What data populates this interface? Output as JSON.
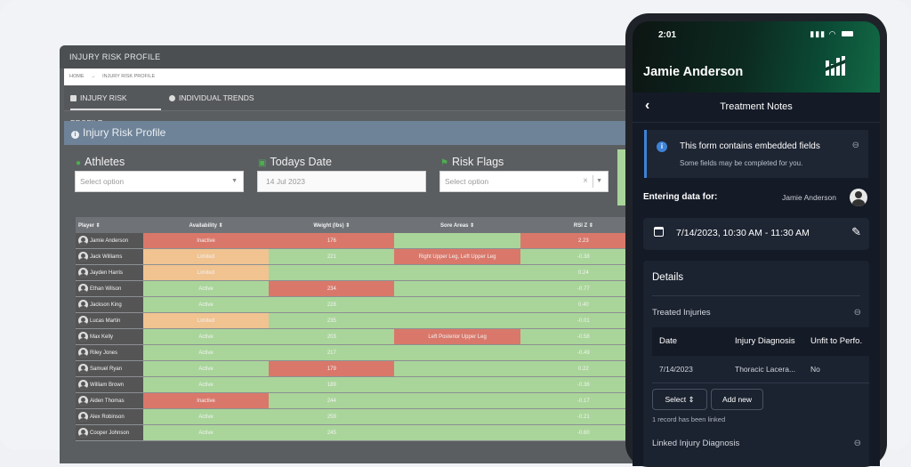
{
  "desktop": {
    "window_title": "INJURY RISK PROFILE",
    "breadcrumb": [
      "HOME",
      "→",
      "INJURY RISK PROFILE"
    ],
    "tabs": [
      {
        "label": "INJURY RISK PROFILE",
        "icon": "profile-icon",
        "active": true
      },
      {
        "label": "INDIVIDUAL TRENDS",
        "icon": "trends-icon",
        "active": false
      }
    ],
    "panel_title": "Injury Risk Profile",
    "filters": {
      "athletes": {
        "label": "Athletes",
        "placeholder": "Select option"
      },
      "date": {
        "label": "Todays Date",
        "value": "14 Jul 2023"
      },
      "risk_flags": {
        "label": "Risk Flags",
        "placeholder": "Select option"
      }
    },
    "table": {
      "headers": [
        "Player ⇕",
        "Availability ⇕",
        "Weight (lbs) ⇕",
        "Sore Areas ⇕",
        "RSI Z ⇕"
      ],
      "rows": [
        {
          "player": "Jamie Anderson",
          "availability": "Inactive",
          "weight": "176",
          "sore": "",
          "rsi": "2.23",
          "colors": [
            "red",
            "red",
            "grn",
            "red"
          ]
        },
        {
          "player": "Jack Williams",
          "availability": "Limited",
          "weight": "221",
          "sore": "Right Upper Leg, Left Upper Leg",
          "rsi": "-0.38",
          "colors": [
            "org",
            "grn",
            "red",
            "grn"
          ]
        },
        {
          "player": "Jayden Harris",
          "availability": "Limited",
          "weight": "",
          "sore": "",
          "rsi": "0.24",
          "colors": [
            "org",
            "grn",
            "grn",
            "grn"
          ]
        },
        {
          "player": "Ethan Wilson",
          "availability": "Active",
          "weight": "234",
          "sore": "",
          "rsi": "-0.77",
          "colors": [
            "grn",
            "red",
            "grn",
            "grn"
          ]
        },
        {
          "player": "Jackson King",
          "availability": "Active",
          "weight": "228",
          "sore": "",
          "rsi": "0.40",
          "colors": [
            "grn",
            "grn",
            "grn",
            "grn"
          ]
        },
        {
          "player": "Lucas Martin",
          "availability": "Limited",
          "weight": "235",
          "sore": "",
          "rsi": "-0.01",
          "colors": [
            "org",
            "grn",
            "grn",
            "grn"
          ]
        },
        {
          "player": "Max Kelly",
          "availability": "Active",
          "weight": "203",
          "sore": "Left Posterior Upper Leg",
          "rsi": "-0.58",
          "colors": [
            "grn",
            "grn",
            "red",
            "grn"
          ]
        },
        {
          "player": "Riley Jones",
          "availability": "Active",
          "weight": "217",
          "sore": "",
          "rsi": "-0.49",
          "colors": [
            "grn",
            "grn",
            "grn",
            "grn"
          ]
        },
        {
          "player": "Samuel Ryan",
          "availability": "Active",
          "weight": "179",
          "sore": "",
          "rsi": "0.22",
          "colors": [
            "grn",
            "red",
            "grn",
            "grn"
          ]
        },
        {
          "player": "William Brown",
          "availability": "Active",
          "weight": "189",
          "sore": "",
          "rsi": "-0.36",
          "colors": [
            "grn",
            "grn",
            "grn",
            "grn"
          ]
        },
        {
          "player": "Aiden Thomas",
          "availability": "Inactive",
          "weight": "244",
          "sore": "",
          "rsi": "-0.17",
          "colors": [
            "red",
            "grn",
            "grn",
            "grn"
          ]
        },
        {
          "player": "Alex Robinson",
          "availability": "Active",
          "weight": "259",
          "sore": "",
          "rsi": "-0.21",
          "colors": [
            "grn",
            "grn",
            "grn",
            "grn"
          ]
        },
        {
          "player": "Cooper Johnson",
          "availability": "Active",
          "weight": "245",
          "sore": "",
          "rsi": "-0.60",
          "colors": [
            "grn",
            "grn",
            "grn",
            "grn"
          ]
        }
      ]
    }
  },
  "mobile": {
    "status_time": "2:01",
    "status_icons": "signal wifi battery",
    "header_name": "Jamie Anderson",
    "nav_title": "Treatment Notes",
    "info_title": "This form contains embedded fields",
    "info_sub": "Some fields may be completed for you.",
    "entering_label": "Entering data for:",
    "entering_name": "Jamie Anderson",
    "date_range": "7/14/2023, 10:30 AM - 11:30 AM",
    "details_title": "Details",
    "treated_injuries_label": "Treated Injuries",
    "sub_table": {
      "headers": [
        "Date",
        "Injury Diagnosis",
        "Unfit to Perfo."
      ],
      "row": [
        "7/14/2023",
        "Thoracic Lacera...",
        "No"
      ]
    },
    "select_label": "Select",
    "add_new_label": "Add new",
    "linked_count": "1 record has been linked",
    "linked_diagnosis_label": "Linked Injury Diagnosis"
  },
  "colors": {
    "red": "#d9786a",
    "orange": "#f0c390",
    "green": "#a9d59a",
    "accent_blue": "#3e82d6"
  }
}
